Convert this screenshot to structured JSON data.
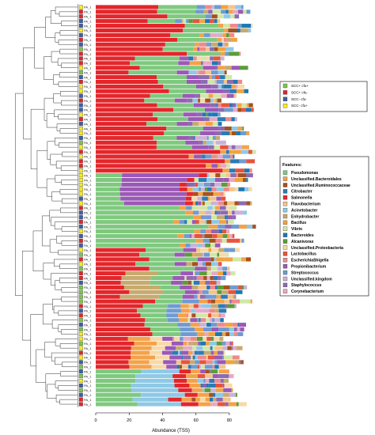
{
  "chart_data": {
    "type": "bar",
    "orientation": "horizontal",
    "stacked": true,
    "xlabel": "Abundance (TSS)",
    "xlim": [
      0,
      100
    ],
    "x_ticks": [
      0,
      20,
      40,
      60,
      80
    ],
    "sample_label": "PA_1",
    "sample_count": 86,
    "groups": [
      {
        "name": "SCC+ cfu+",
        "color": "#7dc34f"
      },
      {
        "name": "SCC+ cfu-",
        "color": "#e0262a"
      },
      {
        "name": "SCC- cfu-",
        "color": "#3c5fa8"
      },
      {
        "name": "SCC- cfu+",
        "color": "#f6ec23"
      }
    ],
    "features_title": "Features:",
    "features": [
      {
        "name": "Pseudomonas",
        "color": "#7fc97f"
      },
      {
        "name": "Unclassified.Bacteroidales",
        "color": "#f4a24a"
      },
      {
        "name": "Unclassified.Ruminococcaceae",
        "color": "#a4521d"
      },
      {
        "name": "Citrobacter",
        "color": "#2c7bb6"
      },
      {
        "name": "Salmonella",
        "color": "#e3262b"
      },
      {
        "name": "Flavobacterium",
        "color": "#f3c48a"
      },
      {
        "name": "Acinetobacter",
        "color": "#8ec9e6"
      },
      {
        "name": "Enhydrobacter",
        "color": "#c7aa6e"
      },
      {
        "name": "Bacillus",
        "color": "#f2a33a"
      },
      {
        "name": "Vibrio",
        "color": "#cfe8a7"
      },
      {
        "name": "Bacteroides",
        "color": "#1f78b4"
      },
      {
        "name": "Alcanivorax",
        "color": "#5c9c3a"
      },
      {
        "name": "Unclassified.Proteobacteria",
        "color": "#f7d9a8"
      },
      {
        "name": "Lactobacillus",
        "color": "#e8533b"
      },
      {
        "name": "EscherichiaShigella",
        "color": "#ef8a8a"
      },
      {
        "name": "Propionibacterium",
        "color": "#9b59b6"
      },
      {
        "name": "Streptococcus",
        "color": "#6f9bd1"
      },
      {
        "name": "Unclassified.kingdom",
        "color": "#c9b3d9"
      },
      {
        "name": "Staphylococcus",
        "color": "#8c6bb1"
      },
      {
        "name": "Corynebacterium",
        "color": "#e7a8c6"
      }
    ]
  }
}
